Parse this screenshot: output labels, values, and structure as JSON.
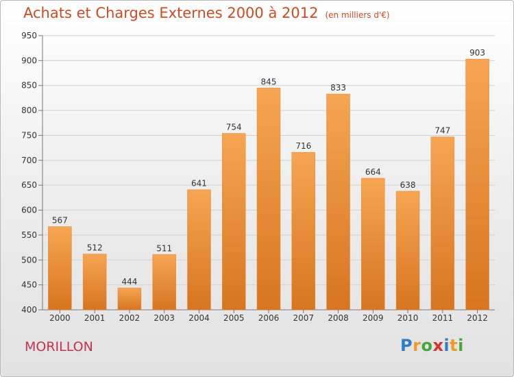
{
  "header": {
    "title": "Achats et Charges Externes 2000 à 2012",
    "unit": "(en milliers d'€)"
  },
  "footer": {
    "commune": "MORILLON",
    "logo_letters": [
      {
        "ch": "P",
        "color": "#2f7fc4"
      },
      {
        "ch": "r",
        "color": "#f29c1f"
      },
      {
        "ch": "o",
        "color": "#44a83a"
      },
      {
        "ch": "x",
        "color": "#d8322a"
      },
      {
        "ch": "i",
        "color": "#2f7fc4"
      },
      {
        "ch": "t",
        "color": "#f29c1f"
      },
      {
        "ch": "i",
        "color": "#44a83a"
      }
    ]
  },
  "colors": {
    "title": "#d14a1f",
    "commune": "#c8314d",
    "bar_light": "#f6a552",
    "bar_dark": "#d77520"
  },
  "chart_data": {
    "type": "bar",
    "title": "Achats et Charges Externes 2000 à 2012",
    "categories": [
      "2000",
      "2001",
      "2002",
      "2003",
      "2004",
      "2005",
      "2006",
      "2007",
      "2008",
      "2009",
      "2010",
      "2011",
      "2012"
    ],
    "values": [
      567,
      512,
      444,
      511,
      641,
      754,
      845,
      716,
      833,
      664,
      638,
      747,
      903
    ],
    "ylim": [
      400,
      950
    ],
    "yticks": [
      400,
      450,
      500,
      550,
      600,
      650,
      700,
      750,
      800,
      850,
      900,
      950
    ],
    "grid": true,
    "data_labels": true,
    "xlabel": "",
    "ylabel": ""
  }
}
